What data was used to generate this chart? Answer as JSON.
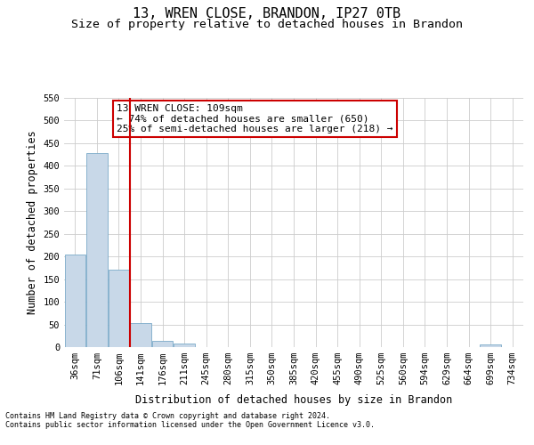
{
  "title": "13, WREN CLOSE, BRANDON, IP27 0TB",
  "subtitle": "Size of property relative to detached houses in Brandon",
  "xlabel": "Distribution of detached houses by size in Brandon",
  "ylabel": "Number of detached properties",
  "footnote1": "Contains HM Land Registry data © Crown copyright and database right 2024.",
  "footnote2": "Contains public sector information licensed under the Open Government Licence v3.0.",
  "annotation_line1": "13 WREN CLOSE: 109sqm",
  "annotation_line2": "← 74% of detached houses are smaller (650)",
  "annotation_line3": "25% of semi-detached houses are larger (218) →",
  "bar_color": "#c8d8e8",
  "bar_edge_color": "#7aaac8",
  "vline_color": "#cc0000",
  "vline_x": 2.5,
  "annotation_box_edge_color": "#cc0000",
  "categories": [
    "36sqm",
    "71sqm",
    "106sqm",
    "141sqm",
    "176sqm",
    "211sqm",
    "245sqm",
    "280sqm",
    "315sqm",
    "350sqm",
    "385sqm",
    "420sqm",
    "455sqm",
    "490sqm",
    "525sqm",
    "560sqm",
    "594sqm",
    "629sqm",
    "664sqm",
    "699sqm",
    "734sqm"
  ],
  "values": [
    205,
    428,
    170,
    53,
    13,
    8,
    0,
    0,
    0,
    0,
    0,
    0,
    0,
    0,
    0,
    0,
    0,
    0,
    0,
    5,
    0
  ],
  "ylim": [
    0,
    550
  ],
  "yticks": [
    0,
    50,
    100,
    150,
    200,
    250,
    300,
    350,
    400,
    450,
    500,
    550
  ],
  "bg_color": "#ffffff",
  "grid_color": "#cccccc",
  "title_fontsize": 11,
  "subtitle_fontsize": 9.5,
  "axis_label_fontsize": 8.5,
  "tick_fontsize": 7.5,
  "annotation_fontsize": 8,
  "footnote_fontsize": 6
}
